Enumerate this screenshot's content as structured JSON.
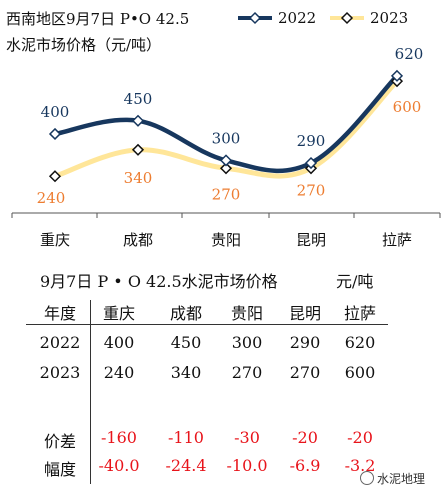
{
  "chart_data": {
    "type": "line",
    "title_line1": "西南地区9月7日 P•O 42.5",
    "title_line2": "水泥市场价格（元/吨）",
    "categories": [
      "重庆",
      "成都",
      "贵阳",
      "昆明",
      "拉萨"
    ],
    "series": [
      {
        "name": "2022",
        "values": [
          400,
          450,
          300,
          290,
          620
        ],
        "color": "#17375e",
        "label_color": "#17375e"
      },
      {
        "name": "2023",
        "values": [
          240,
          340,
          270,
          270,
          600
        ],
        "color": "#ffe699",
        "label_color": "#ed7d31"
      }
    ],
    "ylim": [
      150,
      680
    ],
    "grid": false,
    "legend": "top-right"
  },
  "table": {
    "title": "9月7日 P • O 42.5水泥市场价格",
    "unit": "元/吨",
    "corner": "年度",
    "columns": [
      "重庆",
      "成都",
      "贵阳",
      "昆明",
      "拉萨"
    ],
    "rows": [
      {
        "label": "2022",
        "values": [
          "400",
          "450",
          "300",
          "290",
          "620"
        ],
        "red": false
      },
      {
        "label": "2023",
        "values": [
          "240",
          "340",
          "270",
          "270",
          "600"
        ],
        "red": false
      },
      {
        "label": "价差",
        "values": [
          "-160",
          "-110",
          "-30",
          "-20",
          "-20"
        ],
        "red": true
      },
      {
        "label": "幅度",
        "values": [
          "-40.0",
          "-24.4",
          "-10.0",
          "-6.9",
          "-3.2"
        ],
        "red": true
      }
    ]
  },
  "watermark": "水泥地理"
}
